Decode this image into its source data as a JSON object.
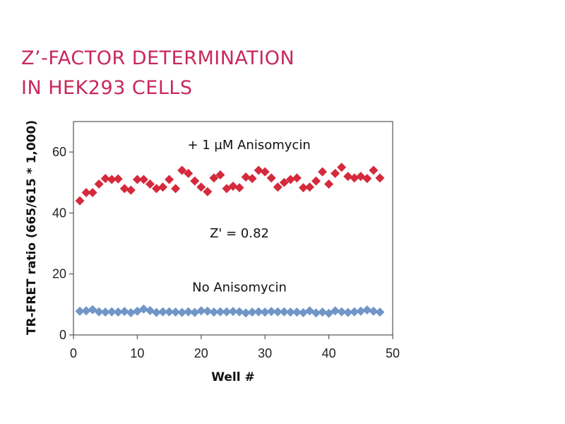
{
  "title_lines": [
    "Z’-FACTOR DETERMINATION",
    "IN HEK293 CELLS"
  ],
  "chart_data": {
    "type": "scatter",
    "xlabel": "Well #",
    "ylabel": "TR-FRET ratio (665/615 * 1,000)",
    "xlim": [
      0,
      50
    ],
    "ylim": [
      0,
      70
    ],
    "xticks": [
      0,
      10,
      20,
      30,
      40,
      50
    ],
    "yticks": [
      0,
      20,
      40,
      60
    ],
    "grid": false,
    "marker": "diamond",
    "series": [
      {
        "name": "+ 1 µM Anisomycin",
        "color": "#d42a3c",
        "x": [
          1,
          2,
          3,
          4,
          5,
          6,
          7,
          8,
          9,
          10,
          11,
          12,
          13,
          14,
          15,
          16,
          17,
          18,
          19,
          20,
          21,
          22,
          23,
          24,
          25,
          26,
          27,
          28,
          29,
          30,
          31,
          32,
          33,
          34,
          35,
          36,
          37,
          38,
          39,
          40,
          41,
          42,
          43,
          44,
          45,
          46,
          47,
          48
        ],
        "y": [
          44,
          46.7,
          46.7,
          49.5,
          51.3,
          51,
          51.2,
          48,
          47.5,
          51,
          51,
          49.5,
          48,
          48.5,
          51,
          48,
          54,
          53,
          50.5,
          48.5,
          47,
          51.5,
          52.5,
          48,
          48.8,
          48.3,
          51.8,
          51.3,
          54,
          53.5,
          51.5,
          48.5,
          50,
          51,
          51.5,
          48.3,
          48.5,
          50.5,
          53.5,
          49.5,
          53,
          55,
          52,
          51.5,
          52,
          51.3,
          54,
          51.5
        ]
      },
      {
        "name": "No Anisomycin",
        "color": "#6f96c6",
        "x": [
          1,
          2,
          3,
          4,
          5,
          6,
          7,
          8,
          9,
          10,
          11,
          12,
          13,
          14,
          15,
          16,
          17,
          18,
          19,
          20,
          21,
          22,
          23,
          24,
          25,
          26,
          27,
          28,
          29,
          30,
          31,
          32,
          33,
          34,
          35,
          36,
          37,
          38,
          39,
          40,
          41,
          42,
          43,
          44,
          45,
          46,
          47,
          48
        ],
        "y": [
          7.8,
          7.9,
          8.3,
          7.6,
          7.5,
          7.6,
          7.5,
          7.7,
          7.3,
          7.8,
          8.5,
          8,
          7.4,
          7.6,
          7.6,
          7.5,
          7.4,
          7.6,
          7.4,
          7.9,
          7.8,
          7.5,
          7.6,
          7.6,
          7.7,
          7.6,
          7.2,
          7.5,
          7.6,
          7.5,
          7.7,
          7.6,
          7.6,
          7.5,
          7.5,
          7.3,
          7.9,
          7.2,
          7.5,
          7.1,
          7.9,
          7.6,
          7.4,
          7.6,
          7.8,
          8.2,
          7.8,
          7.5
        ]
      }
    ],
    "annotations": [
      {
        "text": "+ 1 µM Anisomycin",
        "x": 27.5,
        "y": 61
      },
      {
        "text": "Z' = 0.82",
        "x": 26,
        "y": 32
      },
      {
        "text": "No Anisomycin",
        "x": 26,
        "y": 14.3
      }
    ]
  }
}
